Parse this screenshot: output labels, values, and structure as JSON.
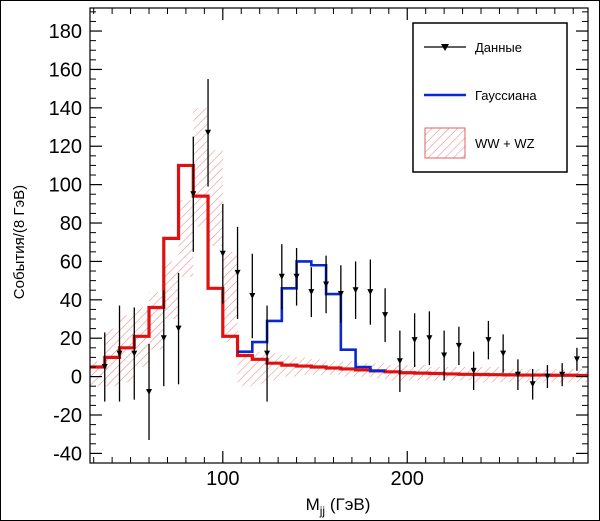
{
  "chart_data": {
    "type": "histogram",
    "title": "",
    "xlabel": "M",
    "xlabel_sub": "jj",
    "xlabel_unit": "(ГэВ)",
    "ylabel": "События/(8 ГэВ)",
    "xlim": [
      28,
      298
    ],
    "ylim": [
      -45,
      192
    ],
    "x_ticks": [
      100,
      200
    ],
    "x_tick_labels": [
      "100",
      "200"
    ],
    "y_ticks": [
      -40,
      -20,
      0,
      20,
      40,
      60,
      80,
      100,
      120,
      140,
      160,
      180
    ],
    "y_tick_labels": [
      "-40",
      "-20",
      "0",
      "20",
      "40",
      "60",
      "80",
      "100",
      "120",
      "140",
      "160",
      "180"
    ],
    "legend": {
      "placement": "top-right",
      "entries": [
        {
          "label": "Данные",
          "style": "points-with-errors"
        },
        {
          "label": "Гауссиана",
          "style": "line",
          "color": "#0000cc"
        },
        {
          "label": "WW + WZ",
          "style": "hatched-band",
          "color": "#e06060"
        }
      ]
    },
    "data_points": [
      {
        "x": 36,
        "y": 5,
        "err": 18
      },
      {
        "x": 44,
        "y": 12,
        "err": 25
      },
      {
        "x": 52,
        "y": 12,
        "err": 24
      },
      {
        "x": 60,
        "y": -8,
        "err": 25
      },
      {
        "x": 68,
        "y": 20,
        "err": 25
      },
      {
        "x": 76,
        "y": 25,
        "err": 29
      },
      {
        "x": 84,
        "y": 95,
        "err": 30
      },
      {
        "x": 92,
        "y": 127,
        "err": 28
      },
      {
        "x": 100,
        "y": 64,
        "err": 26
      },
      {
        "x": 108,
        "y": 54,
        "err": 24
      },
      {
        "x": 116,
        "y": 42,
        "err": 22
      },
      {
        "x": 124,
        "y": 12,
        "err": 25
      },
      {
        "x": 132,
        "y": 52,
        "err": 17
      },
      {
        "x": 140,
        "y": 52,
        "err": 15
      },
      {
        "x": 148,
        "y": 44,
        "err": 13
      },
      {
        "x": 156,
        "y": 48,
        "err": 15
      },
      {
        "x": 164,
        "y": 43,
        "err": 15
      },
      {
        "x": 172,
        "y": 45,
        "err": 15
      },
      {
        "x": 180,
        "y": 44,
        "err": 17
      },
      {
        "x": 188,
        "y": 32,
        "err": 14
      },
      {
        "x": 196,
        "y": 8,
        "err": 16
      },
      {
        "x": 204,
        "y": 19,
        "err": 14
      },
      {
        "x": 212,
        "y": 20,
        "err": 14
      },
      {
        "x": 220,
        "y": 11,
        "err": 13
      },
      {
        "x": 228,
        "y": 16,
        "err": 10
      },
      {
        "x": 236,
        "y": 3,
        "err": 10
      },
      {
        "x": 244,
        "y": 19,
        "err": 10
      },
      {
        "x": 252,
        "y": 12,
        "err": 10
      },
      {
        "x": 260,
        "y": 1,
        "err": 8
      },
      {
        "x": 268,
        "y": -4,
        "err": 8
      },
      {
        "x": 276,
        "y": 0,
        "err": 6
      },
      {
        "x": 284,
        "y": 1,
        "err": 6
      },
      {
        "x": 292,
        "y": 9,
        "err": 6
      }
    ],
    "ww_wz_fit": {
      "edges": [
        28,
        36,
        44,
        52,
        60,
        68,
        76,
        84,
        92,
        100,
        108,
        116,
        124,
        132,
        140,
        148,
        156,
        164,
        172,
        180,
        188,
        196,
        204,
        212,
        220,
        228,
        236,
        244,
        252,
        260,
        268,
        276,
        284,
        292,
        298
      ],
      "values": [
        5,
        10,
        15,
        21,
        36,
        72,
        110,
        94,
        46,
        21,
        11,
        9,
        7,
        6,
        5.5,
        5,
        4.5,
        4,
        3.5,
        3,
        2.5,
        2,
        1.8,
        1.6,
        1.4,
        1.2,
        1.1,
        1,
        0.9,
        0.8,
        0.8,
        0.7,
        0.7,
        0.6
      ],
      "color": "#e01010"
    },
    "gaussian_fit": {
      "edges": [
        108,
        116,
        124,
        132,
        140,
        148,
        156,
        164,
        172,
        180,
        188
      ],
      "values": [
        13,
        18,
        29,
        46,
        60,
        58,
        43,
        14,
        5,
        3
      ],
      "color": "#0a28d0"
    },
    "ww_wz_band": {
      "edges": [
        28,
        36,
        44,
        52,
        60,
        68,
        76,
        84,
        92,
        100,
        108,
        116,
        124,
        132,
        140,
        148,
        156,
        164,
        172,
        180,
        188,
        196,
        204,
        212,
        220,
        228,
        236,
        244,
        252,
        260,
        268,
        276,
        284,
        292,
        298
      ],
      "upper": [
        8,
        25,
        32,
        36,
        44,
        60,
        92,
        140,
        118,
        65,
        12,
        13,
        12,
        11,
        10,
        9,
        8,
        8,
        7,
        7,
        6,
        6,
        6,
        5,
        5,
        5,
        5,
        5,
        4,
        4,
        4,
        4,
        4,
        4
      ],
      "lower": [
        -5,
        -5,
        -3,
        5,
        14,
        30,
        52,
        78,
        68,
        18,
        -5,
        -4,
        -2,
        0,
        1,
        1,
        1,
        0,
        0,
        -1,
        -2,
        -2,
        -2,
        -2,
        -2,
        -2,
        -3,
        -3,
        -3,
        -3,
        -3,
        -3,
        -3,
        -3
      ]
    }
  }
}
